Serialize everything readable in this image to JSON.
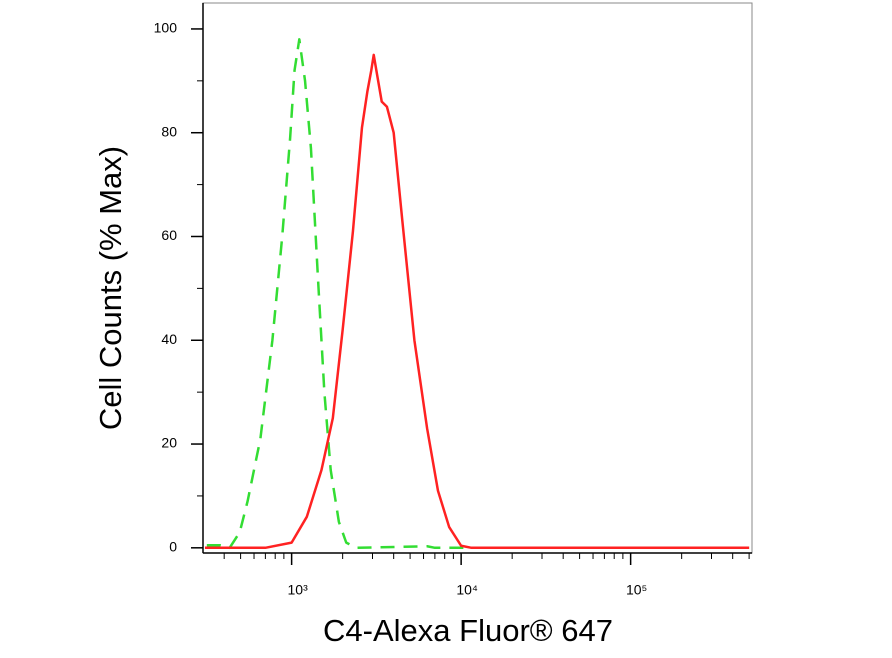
{
  "chart_data": {
    "type": "line",
    "xlabel": "C4-Alexa Fluor® 647",
    "ylabel": "Cell Counts (% Max)",
    "xscale": "log",
    "xlim": [
      300,
      520000
    ],
    "ylim": [
      -1,
      105
    ],
    "xticks": [
      {
        "value": 1000,
        "label": "10³"
      },
      {
        "value": 10000,
        "label": "10⁴"
      },
      {
        "value": 100000,
        "label": "10⁵"
      }
    ],
    "xminor_ticks": [
      400,
      500,
      600,
      700,
      800,
      900,
      2000,
      3000,
      4000,
      5000,
      6000,
      7000,
      8000,
      9000,
      20000,
      30000,
      40000,
      50000,
      60000,
      70000,
      80000,
      90000,
      200000,
      300000,
      400000,
      500000
    ],
    "yticks": [
      0,
      20,
      40,
      60,
      80,
      100
    ],
    "yminor_ticks": [
      10,
      30,
      50,
      70,
      90
    ],
    "series": [
      {
        "color": "#33dd33",
        "dash": true,
        "x": [
          316,
          377,
          431,
          494,
          550,
          654,
          770,
          880,
          980,
          1040,
          1110,
          1200,
          1300,
          1430,
          1560,
          1700,
          1900,
          2100,
          2400,
          6300,
          7000,
          500000
        ],
        "values": [
          0.5,
          0.5,
          0,
          3,
          9,
          21,
          40,
          60,
          79,
          92,
          98,
          90,
          77,
          52,
          30,
          15,
          5,
          1,
          0,
          0.3,
          0,
          0
        ]
      },
      {
        "color": "#ff2222",
        "dash": false,
        "x": [
          308,
          700,
          1000,
          1230,
          1500,
          1750,
          2000,
          2300,
          2600,
          2800,
          2950,
          3050,
          3200,
          3400,
          3650,
          4000,
          4500,
          5300,
          6300,
          7300,
          8500,
          10000,
          11500,
          500000
        ],
        "values": [
          0,
          0,
          1,
          6,
          15,
          25,
          42,
          61,
          81,
          88,
          92,
          95,
          91,
          86,
          85,
          80,
          63,
          40,
          23,
          11,
          4,
          0.4,
          0,
          0
        ]
      }
    ]
  }
}
